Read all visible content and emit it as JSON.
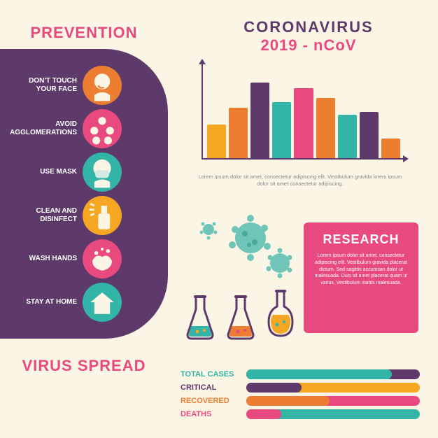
{
  "colors": {
    "bg": "#faf5e4",
    "purple": "#5e3a6b",
    "pink": "#e84a7f",
    "teal": "#32b4a6",
    "tealLight": "#6ec5b8",
    "yellow": "#f5a623",
    "orange": "#ed7d31",
    "text": "#888888",
    "white": "#ffffff"
  },
  "title": {
    "line1": "CORONAVIRUS",
    "line2": "2019 - nCoV"
  },
  "prevention": {
    "heading": "PREVENTION",
    "items": [
      {
        "label": "DON'T TOUCH YOUR FACE",
        "icon": "face-touch-icon",
        "bg": "#ed7d31"
      },
      {
        "label": "AVOID AGGLOMERATIONS",
        "icon": "crowd-icon",
        "bg": "#e84a7f"
      },
      {
        "label": "USE MASK",
        "icon": "mask-icon",
        "bg": "#32b4a6"
      },
      {
        "label": "CLEAN AND DISINFECT",
        "icon": "spray-icon",
        "bg": "#f5a623"
      },
      {
        "label": "WASH HANDS",
        "icon": "wash-hands-icon",
        "bg": "#e84a7f"
      },
      {
        "label": "STAY AT HOME",
        "icon": "home-icon",
        "bg": "#32b4a6"
      }
    ]
  },
  "spread_heading": "VIRUS SPREAD",
  "chart": {
    "type": "bar",
    "bars": [
      {
        "h": 48,
        "color": "#f5a623"
      },
      {
        "h": 72,
        "color": "#ed7d31"
      },
      {
        "h": 108,
        "color": "#5e3a6b"
      },
      {
        "h": 80,
        "color": "#32b4a6"
      },
      {
        "h": 100,
        "color": "#e84a7f"
      },
      {
        "h": 86,
        "color": "#ed7d31"
      },
      {
        "h": 62,
        "color": "#32b4a6"
      },
      {
        "h": 66,
        "color": "#5e3a6b"
      },
      {
        "h": 28,
        "color": "#ed7d31"
      }
    ],
    "ylim": [
      0,
      120
    ],
    "axis_color": "#5e3a6b",
    "caption": "Lorem ipsum dolor sit amet, consectetur adipiscing elit. Vestibulum gravida lorem ipsum dolor sit amet consectetur adipiscing."
  },
  "research": {
    "heading": "RESEARCH",
    "body": "Lorem ipsum dolor sit amet, consectetur adipiscing elit. Vestibulum gravida placerat dictum. Sed sagittis accumsan dolor ut malesuada. Duis sit amet placerat quam ut varius. Vestibulum mattis malesuada."
  },
  "flasks": [
    {
      "type": "erlenmeyer",
      "outline": "#5e3a6b",
      "fill": "#32b4a6",
      "bubbles": "#f5a623"
    },
    {
      "type": "erlenmeyer",
      "outline": "#5e3a6b",
      "fill": "#ed7d31",
      "bubbles": "#e84a7f"
    },
    {
      "type": "round",
      "outline": "#5e3a6b",
      "fill": "#f5a623",
      "bubbles": "#32b4a6"
    }
  ],
  "stats": [
    {
      "label": "TOTAL CASES",
      "label_color": "#32b4a6",
      "bar_color": "#32b4a6",
      "track": "#5e3a6b",
      "pct": 84
    },
    {
      "label": "CRITICAL",
      "label_color": "#5e3a6b",
      "bar_color": "#5e3a6b",
      "track": "#f5a623",
      "pct": 32
    },
    {
      "label": "RECOVERED",
      "label_color": "#ed7d31",
      "bar_color": "#ed7d31",
      "track": "#e84a7f",
      "pct": 48
    },
    {
      "label": "DEATHS",
      "label_color": "#e84a7f",
      "bar_color": "#e84a7f",
      "track": "#32b4a6",
      "pct": 20
    }
  ]
}
